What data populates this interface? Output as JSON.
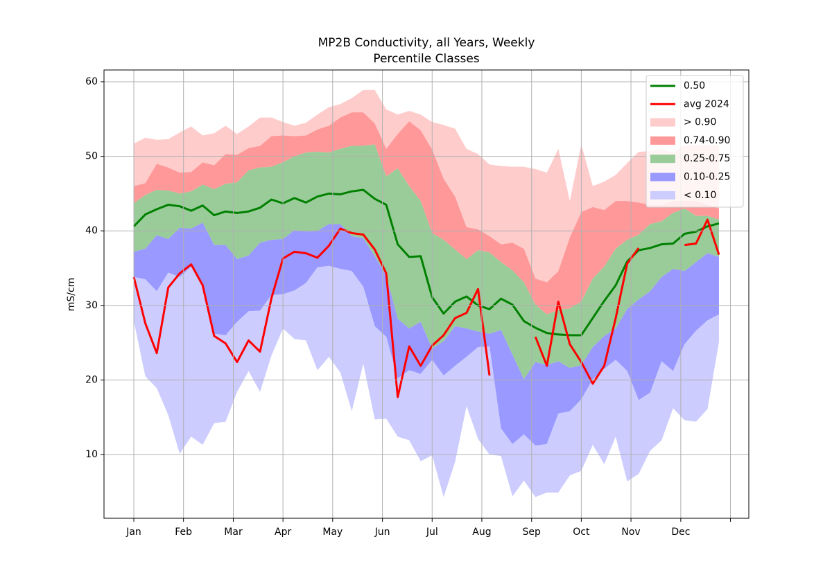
{
  "chart_data": {
    "type": "percentile_bands",
    "title": [
      "MP2B Conductivity, all Years, Weekly",
      "Percentile Classes"
    ],
    "y_label": "mS/cm",
    "x": [
      0,
      1,
      2,
      3,
      4,
      5,
      6,
      7,
      8,
      9,
      10,
      11,
      12,
      13,
      14,
      15,
      16,
      17,
      18,
      19,
      20,
      21,
      22,
      23,
      24,
      25,
      26,
      27,
      28,
      29,
      30,
      31,
      32,
      33,
      34,
      35,
      36,
      37,
      38,
      39,
      40,
      41,
      42,
      43,
      44,
      45,
      46,
      47,
      48,
      49,
      50,
      51
    ],
    "xlim": [
      -2.6,
      53.6
    ],
    "xticks": [
      {
        "value": 0,
        "label": "Jan"
      },
      {
        "value": 4.33,
        "label": "Feb"
      },
      {
        "value": 8.67,
        "label": "Mar"
      },
      {
        "value": 13,
        "label": "Apr"
      },
      {
        "value": 17.33,
        "label": "May"
      },
      {
        "value": 21.67,
        "label": "Jun"
      },
      {
        "value": 26,
        "label": "Jul"
      },
      {
        "value": 30.33,
        "label": "Aug"
      },
      {
        "value": 34.67,
        "label": "Sep"
      },
      {
        "value": 39,
        "label": "Oct"
      },
      {
        "value": 43.33,
        "label": "Nov"
      },
      {
        "value": 47.67,
        "label": "Dec"
      },
      {
        "value": 52,
        "label": null
      }
    ],
    "ylim": [
      1.45,
      61.58
    ],
    "yticks": [
      10,
      20,
      30,
      40,
      50,
      60
    ],
    "grid": true,
    "legend": "upper right",
    "series": [
      {
        "name": "0.50",
        "kind": "line",
        "color": "#008000",
        "values": [
          40.6,
          42.2,
          42.9,
          43.5,
          43.3,
          42.7,
          43.4,
          42.1,
          42.6,
          42.4,
          42.6,
          43.1,
          44.2,
          43.7,
          44.4,
          43.8,
          44.6,
          45.0,
          44.9,
          45.3,
          45.5,
          44.3,
          43.5,
          38.2,
          36.5,
          36.6,
          31.1,
          28.9,
          30.5,
          31.2,
          30.0,
          29.5,
          30.9,
          30.1,
          27.9,
          27.0,
          26.3,
          26.1,
          26.0,
          26.0,
          28.3,
          30.6,
          32.7,
          35.9,
          37.4,
          37.7,
          38.2,
          38.3,
          39.6,
          39.9,
          40.6,
          41.0
        ]
      },
      {
        "name": "avg 2024",
        "kind": "line",
        "color": "#ff0000",
        "values": [
          33.8,
          27.6,
          23.6,
          32.4,
          34.3,
          35.5,
          32.7,
          25.9,
          24.9,
          22.4,
          25.3,
          23.8,
          31.0,
          36.3,
          37.2,
          37.0,
          36.4,
          38.0,
          40.3,
          39.7,
          39.5,
          37.5,
          34.3,
          17.7,
          24.5,
          21.9,
          24.6,
          26.0,
          28.3,
          29.0,
          32.2,
          20.6,
          null,
          null,
          null,
          25.8,
          21.9,
          30.5,
          24.8,
          22.4,
          19.5,
          21.9,
          28.3,
          35.6,
          37.7,
          null,
          null,
          null,
          38.1,
          38.3,
          41.5,
          36.8
        ]
      },
      {
        "name": "> 0.90",
        "kind": "band",
        "color": "#ffcccc",
        "upper": [
          51.7,
          52.5,
          52.2,
          52.3,
          53.2,
          54.0,
          52.8,
          53.1,
          54.1,
          53.0,
          54.0,
          55.2,
          55.2,
          54.6,
          54.1,
          54.5,
          55.6,
          56.6,
          57.0,
          57.8,
          58.9,
          58.9,
          56.3,
          55.6,
          56.1,
          55.6,
          54.6,
          54.2,
          53.7,
          51.0,
          50.3,
          48.9,
          48.7,
          48.6,
          48.6,
          48.3,
          47.8,
          51.0,
          44.0,
          51.6,
          46.0,
          46.6,
          47.5,
          49.1,
          50.6,
          50.7,
          51.0,
          50.5,
          51.5,
          51.5,
          51.5,
          51.5
        ],
        "lower": [
          46.0,
          46.4,
          49.0,
          48.5,
          47.8,
          47.9,
          49.2,
          48.8,
          50.3,
          50.2,
          51.1,
          51.4,
          52.7,
          52.8,
          52.7,
          52.8,
          53.6,
          54.1,
          55.2,
          55.9,
          55.9,
          54.4,
          51.0,
          53.0,
          54.7,
          53.5,
          50.9,
          47.0,
          44.6,
          40.5,
          40.2,
          39.3,
          38.2,
          38.4,
          37.6,
          33.6,
          33.1,
          34.6,
          39.1,
          42.5,
          43.2,
          42.8,
          44.0,
          44.0,
          43.8,
          43.5,
          43.5,
          44.0,
          44.0,
          44.0,
          43.5,
          43.0
        ]
      },
      {
        "name": "0.74-0.90",
        "kind": "band",
        "color": "#ff9999",
        "upper": [
          46.0,
          46.4,
          49.0,
          48.5,
          47.8,
          47.9,
          49.2,
          48.8,
          50.3,
          50.2,
          51.1,
          51.4,
          52.7,
          52.8,
          52.7,
          52.8,
          53.6,
          54.1,
          55.2,
          55.9,
          55.9,
          54.4,
          51.0,
          53.0,
          54.7,
          53.5,
          50.9,
          47.0,
          44.6,
          40.5,
          40.2,
          39.3,
          38.2,
          38.4,
          37.6,
          33.6,
          33.1,
          34.6,
          39.1,
          42.5,
          43.2,
          42.8,
          44.0,
          44.0,
          43.8,
          43.5,
          43.5,
          44.0,
          44.0,
          44.0,
          43.5,
          43.0
        ],
        "lower": [
          43.7,
          44.8,
          45.5,
          45.4,
          45.0,
          45.3,
          46.2,
          45.6,
          46.3,
          46.5,
          48.1,
          48.5,
          48.6,
          49.2,
          50.0,
          50.5,
          50.6,
          50.5,
          51.0,
          51.4,
          51.4,
          51.6,
          47.3,
          48.4,
          46.0,
          44.0,
          39.7,
          38.8,
          37.5,
          36.2,
          37.4,
          37.1,
          35.8,
          34.7,
          33.1,
          30.1,
          28.8,
          29.4,
          29.6,
          30.5,
          33.6,
          35.2,
          37.6,
          38.8,
          39.5,
          40.9,
          41.3,
          42.4,
          43.0,
          42.0,
          42.0,
          41.5
        ]
      },
      {
        "name": "0.25-0.75",
        "kind": "band",
        "color": "#99cc99",
        "upper": [
          43.7,
          44.8,
          45.5,
          45.4,
          45.0,
          45.3,
          46.2,
          45.6,
          46.3,
          46.5,
          48.1,
          48.5,
          48.6,
          49.2,
          50.0,
          50.5,
          50.6,
          50.5,
          51.0,
          51.4,
          51.4,
          51.6,
          47.3,
          48.4,
          46.0,
          44.0,
          39.7,
          38.8,
          37.5,
          36.2,
          37.4,
          37.1,
          35.8,
          34.7,
          33.1,
          30.1,
          28.8,
          29.4,
          29.6,
          30.5,
          33.6,
          35.2,
          37.6,
          38.8,
          39.5,
          40.9,
          41.3,
          42.4,
          43.0,
          42.0,
          42.0,
          41.5
        ],
        "lower": [
          37.2,
          37.6,
          39.4,
          38.9,
          40.4,
          40.3,
          41.1,
          38.1,
          38.1,
          36.2,
          36.7,
          38.4,
          38.8,
          38.9,
          40.1,
          39.9,
          40.0,
          40.9,
          40.9,
          39.3,
          39.0,
          36.6,
          34.0,
          28.2,
          26.9,
          27.8,
          24.2,
          25.2,
          27.2,
          26.9,
          26.5,
          26.2,
          26.7,
          23.4,
          20.1,
          22.4,
          22.0,
          22.5,
          21.6,
          22.0,
          24.4,
          25.9,
          26.9,
          29.5,
          30.8,
          31.9,
          33.8,
          34.9,
          34.6,
          35.8,
          37.0,
          36.5
        ]
      },
      {
        "name": "0.10-0.25",
        "kind": "band",
        "color": "#9999ff",
        "upper": [
          37.2,
          37.6,
          39.4,
          38.9,
          40.4,
          40.3,
          41.1,
          38.1,
          38.1,
          36.2,
          36.7,
          38.4,
          38.8,
          38.9,
          40.1,
          39.9,
          40.0,
          40.9,
          40.9,
          39.3,
          39.0,
          36.6,
          34.0,
          28.2,
          26.9,
          27.8,
          24.2,
          25.2,
          27.2,
          26.9,
          26.5,
          26.2,
          26.7,
          23.4,
          20.1,
          22.4,
          22.0,
          22.5,
          21.6,
          22.0,
          24.4,
          25.9,
          26.9,
          29.5,
          30.8,
          31.9,
          33.8,
          34.9,
          34.6,
          35.8,
          37.0,
          36.5
        ],
        "lower": [
          33.8,
          33.5,
          31.9,
          34.4,
          33.8,
          35.2,
          32.8,
          26.2,
          26.0,
          27.8,
          29.2,
          29.3,
          31.4,
          31.5,
          32.0,
          33.0,
          35.1,
          35.3,
          34.9,
          34.6,
          32.5,
          27.2,
          25.8,
          20.2,
          21.3,
          20.8,
          22.7,
          20.6,
          21.9,
          23.1,
          24.4,
          24.5,
          13.5,
          11.4,
          12.7,
          11.2,
          11.4,
          15.5,
          15.8,
          17.4,
          20.1,
          21.5,
          22.7,
          21.2,
          17.3,
          18.3,
          22.5,
          21.2,
          24.8,
          26.6,
          28.0,
          28.8
        ]
      },
      {
        "name": "< 0.10",
        "kind": "band",
        "color": "#ccccff",
        "upper": [
          33.8,
          33.5,
          31.9,
          34.4,
          33.8,
          35.2,
          32.8,
          26.2,
          26.0,
          27.8,
          29.2,
          29.3,
          31.4,
          31.5,
          32.0,
          33.0,
          35.1,
          35.3,
          34.9,
          34.6,
          32.5,
          27.2,
          25.8,
          20.2,
          21.3,
          20.8,
          22.7,
          20.6,
          21.9,
          23.1,
          24.4,
          24.5,
          13.5,
          11.4,
          12.7,
          11.2,
          11.4,
          15.5,
          15.8,
          17.4,
          20.1,
          21.5,
          22.7,
          21.2,
          17.3,
          18.3,
          22.5,
          21.2,
          24.8,
          26.6,
          28.0,
          28.8
        ],
        "lower": [
          27.9,
          20.5,
          18.9,
          15.3,
          10.1,
          12.4,
          11.3,
          14.2,
          14.4,
          18.4,
          21.2,
          18.4,
          23.3,
          26.9,
          25.5,
          25.3,
          21.3,
          23.1,
          21.0,
          15.8,
          22.2,
          14.7,
          14.8,
          12.4,
          11.9,
          9.1,
          9.9,
          4.3,
          9.0,
          16.5,
          12.1,
          10.0,
          9.8,
          4.4,
          6.5,
          4.3,
          4.9,
          4.9,
          7.2,
          7.8,
          11.3,
          8.7,
          12.4,
          6.4,
          7.4,
          10.5,
          11.9,
          16.2,
          14.6,
          14.4,
          16.1,
          25.1
        ]
      }
    ]
  }
}
